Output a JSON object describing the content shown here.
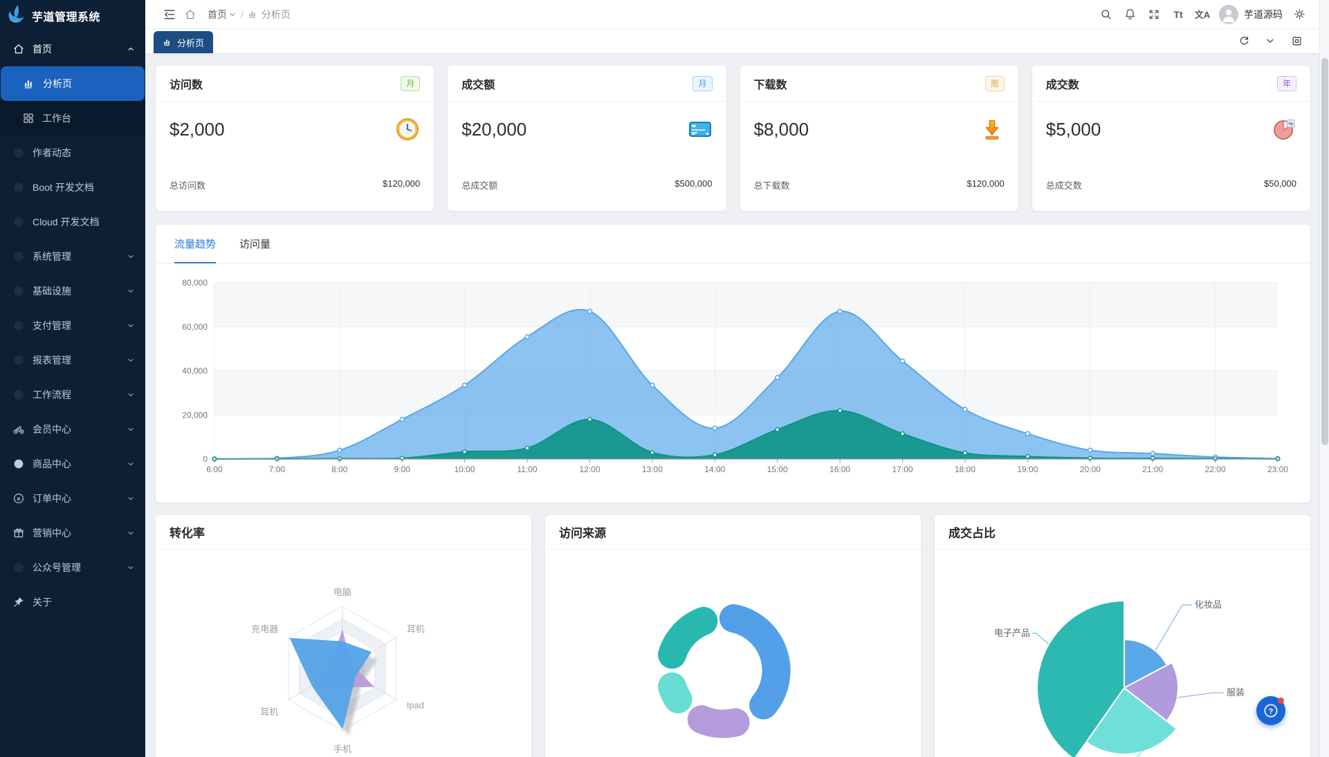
{
  "app": {
    "name": "芋道管理系统",
    "user": "芋道源码"
  },
  "sidebar": {
    "items": [
      {
        "label": "首页",
        "icon": "home-icon",
        "level": 1,
        "chevron": "up",
        "state": "open"
      },
      {
        "label": "分析页",
        "icon": "bar-chart-icon",
        "level": 2,
        "state": "active"
      },
      {
        "label": "工作台",
        "icon": "grid-icon",
        "level": 2,
        "state": "submenu"
      },
      {
        "label": "作者动态",
        "icon": "placeholder-icon",
        "level": 1
      },
      {
        "label": "Boot 开发文档",
        "icon": "placeholder-icon",
        "level": 1
      },
      {
        "label": "Cloud 开发文档",
        "icon": "placeholder-icon",
        "level": 1
      },
      {
        "label": "系统管理",
        "icon": "placeholder-icon",
        "level": 1,
        "chevron": "down"
      },
      {
        "label": "基础设施",
        "icon": "placeholder-icon",
        "level": 1,
        "chevron": "down"
      },
      {
        "label": "支付管理",
        "icon": "placeholder-icon",
        "level": 1,
        "chevron": "down"
      },
      {
        "label": "报表管理",
        "icon": "placeholder-icon",
        "level": 1,
        "chevron": "down"
      },
      {
        "label": "工作流程",
        "icon": "placeholder-icon",
        "level": 1,
        "chevron": "down"
      },
      {
        "label": "会员中心",
        "icon": "bicycle-icon",
        "level": 1,
        "chevron": "down"
      },
      {
        "label": "商品中心",
        "icon": "product-icon",
        "level": 1,
        "chevron": "down"
      },
      {
        "label": "订单中心",
        "icon": "order-icon",
        "level": 1,
        "chevron": "down"
      },
      {
        "label": "营销中心",
        "icon": "gift-icon",
        "level": 1,
        "chevron": "down"
      },
      {
        "label": "公众号管理",
        "icon": "placeholder-icon",
        "level": 1,
        "chevron": "down"
      },
      {
        "label": "关于",
        "icon": "pin-icon",
        "level": 1
      }
    ]
  },
  "topbar": {
    "breadcrumb": {
      "root": "首页",
      "current": "分析页"
    },
    "user": "芋道源码",
    "font_icon_text": "Tt",
    "translate_icon_text": "文A"
  },
  "tabbar": {
    "active_tab": "分析页"
  },
  "stat_cards": [
    {
      "title": "访问数",
      "badge": "月",
      "badge_color": "green",
      "value": "$2,000",
      "icon": "clock-icon",
      "footer_label": "总访问数",
      "footer_value": "$120,000"
    },
    {
      "title": "成交额",
      "badge": "月",
      "badge_color": "blue",
      "value": "$20,000",
      "icon": "credit-card-icon",
      "footer_label": "总成交额",
      "footer_value": "$500,000"
    },
    {
      "title": "下载数",
      "badge": "周",
      "badge_color": "orange",
      "value": "$8,000",
      "icon": "download-icon",
      "footer_label": "总下载数",
      "footer_value": "$120,000"
    },
    {
      "title": "成交数",
      "badge": "年",
      "badge_color": "purple",
      "value": "$5,000",
      "icon": "pie-icon",
      "footer_label": "总成交数",
      "footer_value": "$50,000"
    }
  ],
  "trend_card": {
    "tabs": [
      {
        "label": "流量趋势",
        "active": true
      },
      {
        "label": "访问量",
        "active": false
      }
    ]
  },
  "bottom_cards": [
    {
      "title": "转化率"
    },
    {
      "title": "访问来源"
    },
    {
      "title": "成交占比"
    }
  ],
  "chart_data": [
    {
      "type": "area",
      "title": "流量趋势",
      "x": [
        "6:00",
        "7:00",
        "8:00",
        "9:00",
        "10:00",
        "11:00",
        "12:00",
        "13:00",
        "14:00",
        "15:00",
        "16:00",
        "17:00",
        "18:00",
        "19:00",
        "20:00",
        "21:00",
        "22:00",
        "23:00"
      ],
      "series": [
        {
          "name": "blue-series",
          "color": "#57a6ea",
          "values": [
            100,
            300,
            4000,
            18000,
            33500,
            55500,
            67000,
            33500,
            14000,
            37000,
            67000,
            44500,
            22500,
            11500,
            4000,
            2500,
            900,
            200
          ]
        },
        {
          "name": "green-series",
          "color": "#0d9387",
          "values": [
            0,
            100,
            200,
            400,
            3300,
            5000,
            18000,
            3000,
            1900,
            13400,
            22000,
            11500,
            2800,
            1200,
            400,
            300,
            200,
            100
          ]
        }
      ],
      "ylim": [
        0,
        80000
      ],
      "yticks": [
        0,
        20000,
        40000,
        60000,
        80000
      ],
      "grid": true,
      "legend": false
    },
    {
      "type": "radar",
      "title": "转化率",
      "indicators": [
        "电脑",
        "耳机",
        "Ipad",
        "手机",
        "耳机",
        "充电器"
      ],
      "max": 100,
      "series": [
        {
          "name": "purple-series",
          "color": "#b79ddb",
          "values": [
            61,
            15,
            58,
            30,
            52,
            20
          ]
        },
        {
          "name": "blue-series",
          "color": "#55a4e8",
          "values": [
            43,
            53,
            24,
            96,
            56,
            97
          ]
        }
      ]
    },
    {
      "type": "pie",
      "subtype": "donut",
      "title": "访问来源",
      "labels_visible": false,
      "segments": [
        {
          "color": "#54a0e8",
          "start_deg": -4,
          "end_deg": 146,
          "share_pct": 41
        },
        {
          "color": "#b49cdc",
          "start_deg": 151,
          "end_deg": 219,
          "share_pct": 19
        },
        {
          "color": "#68ddd4",
          "start_deg": 222,
          "end_deg": 268,
          "share_pct": 13
        },
        {
          "color": "#27b8b0",
          "start_deg": 272,
          "end_deg": 354,
          "share_pct": 23
        }
      ]
    },
    {
      "type": "pie",
      "subtype": "rose",
      "title": "成交占比",
      "slices": [
        {
          "label": "化妆品",
          "start_deg": 0,
          "end_deg": 62,
          "radius_px": 70,
          "color": "#58a7e8"
        },
        {
          "label": "服装",
          "start_deg": 62,
          "end_deg": 128,
          "radius_px": 78,
          "color": "#b29ade"
        },
        {
          "label": "",
          "start_deg": 128,
          "end_deg": 215,
          "radius_px": 96,
          "color": "#6fdfda"
        },
        {
          "label": "电子产品",
          "start_deg": 215,
          "end_deg": 360,
          "radius_px": 126,
          "color": "#2cb9b1"
        }
      ]
    }
  ]
}
